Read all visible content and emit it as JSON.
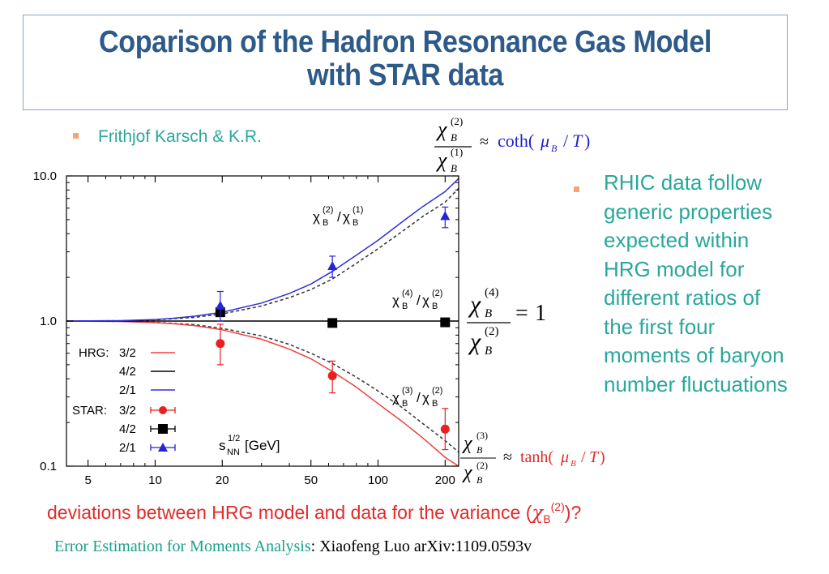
{
  "slide": {
    "title_line1": "Coparison of the Hadron Resonance Gas Model",
    "title_line2": "with  STAR data",
    "author": "Frithjof Karsch & K.R.",
    "right_bullet_lines": [
      "RHIC data follow",
      "generic properties",
      "expected within",
      "HRG model for",
      "different  ratios of",
      "the first four",
      "moments  of baryon",
      "number fluctuations"
    ],
    "bottom_question": "deviations between HRG model and data for the variance",
    "bottom_chi": "χ",
    "bottom_chi_sup": "(2)",
    "bottom_chi_sub": "B",
    "bottom_q_mark": "?",
    "citation_label": "Error Estimation for Moments Analysis",
    "citation_text": "Xiaofeng Luo  arXiv:1109.0593v",
    "colors": {
      "title": "#2e5a8a",
      "teal": "#2aa79b",
      "red": "#e32a2a",
      "blue": "#2b2bd6"
    }
  },
  "formulas": {
    "coth": {
      "num": "χ",
      "num_sub": "B",
      "num_sup": "(2)",
      "den": "χ",
      "den_sub": "B",
      "den_sup": "(1)",
      "approx": "≈",
      "fn": "coth(",
      "mu": "μ",
      "mu_sub": "B",
      "rest": "/",
      "T": "T",
      "close": ")"
    },
    "one": {
      "num": "χ",
      "num_sub": "B",
      "num_sup": "(4)",
      "den": "χ",
      "den_sub": "B",
      "den_sup": "(2)",
      "eq": "=",
      "val": "1"
    },
    "tanh": {
      "num": "χ",
      "num_sub": "B",
      "num_sup": "(3)",
      "den": "χ",
      "den_sub": "B",
      "den_sup": "(2)",
      "approx": "≈",
      "fn": "tanh(",
      "mu": "μ",
      "mu_sub": "B",
      "rest": "/",
      "T": "T",
      "close": ")"
    }
  },
  "chart_data": {
    "type": "line",
    "x_scale": "log",
    "y_scale": "log",
    "xlim": [
      4,
      230
    ],
    "ylim": [
      0.1,
      10
    ],
    "x_ticks": [
      5,
      10,
      20,
      50,
      100,
      200
    ],
    "x_tick_labels": [
      "5",
      "10",
      "20",
      "50",
      "100",
      "200"
    ],
    "y_ticks": [
      0.1,
      1.0,
      10.0
    ],
    "y_tick_labels": [
      "0.1",
      "1.0",
      "10.0"
    ],
    "xlabel_main": "s",
    "xlabel_sup": "1/2",
    "xlabel_sub": "NN",
    "xlabel_unit": "[GeV]",
    "curve_labels": [
      {
        "chi": "χ",
        "sub_a": "B",
        "sup_a": "(2)",
        "slash": "/",
        "sub_b": "B",
        "sup_b": "(1)"
      },
      {
        "chi": "χ",
        "sub_a": "B",
        "sup_a": "(4)",
        "slash": "/",
        "sub_b": "B",
        "sup_b": "(2)"
      },
      {
        "chi": "χ",
        "sub_a": "B",
        "sup_a": "(3)",
        "slash": "/",
        "sub_b": "B",
        "sup_b": "(2)"
      }
    ],
    "legend": {
      "position": "bottom-left",
      "hrg_label": "HRG:",
      "star_label": "STAR:",
      "entries": [
        "3/2",
        "4/2",
        "2/1"
      ]
    },
    "hrg_series": [
      {
        "name": "3/2",
        "color": "#f04040",
        "x": [
          4,
          5,
          7,
          10,
          12,
          15,
          20,
          30,
          40,
          50,
          62.4,
          80,
          100,
          130,
          160,
          200,
          230
        ],
        "y": [
          1,
          0.998,
          0.993,
          0.975,
          0.96,
          0.93,
          0.87,
          0.75,
          0.64,
          0.55,
          0.45,
          0.35,
          0.27,
          0.2,
          0.155,
          0.115,
          0.1
        ]
      },
      {
        "name": "4/2",
        "color": "#000000",
        "x": [
          4,
          230
        ],
        "y": [
          1,
          1
        ]
      },
      {
        "name": "2/1",
        "color": "#3030d8",
        "x": [
          4,
          5,
          7,
          10,
          12,
          15,
          20,
          30,
          40,
          50,
          62.4,
          80,
          100,
          130,
          160,
          200,
          230
        ],
        "y": [
          1,
          1.002,
          1.007,
          1.025,
          1.045,
          1.08,
          1.15,
          1.33,
          1.55,
          1.8,
          2.2,
          2.85,
          3.6,
          4.9,
          6.2,
          7.8,
          9.6
        ]
      }
    ],
    "dashed_series": [
      {
        "name": "2/1",
        "x": [
          4,
          7,
          10,
          15,
          20,
          30,
          40,
          50,
          62.4,
          80,
          100,
          130,
          160,
          200,
          230
        ],
        "y": [
          1,
          1.005,
          1.02,
          1.06,
          1.12,
          1.27,
          1.45,
          1.65,
          1.95,
          2.5,
          3.15,
          4.2,
          5.3,
          6.6,
          8.2
        ]
      },
      {
        "name": "3/2",
        "x": [
          4,
          7,
          10,
          15,
          20,
          30,
          40,
          50,
          62.4,
          80,
          100,
          130,
          160,
          200,
          230
        ],
        "y": [
          1,
          0.995,
          0.98,
          0.945,
          0.89,
          0.79,
          0.69,
          0.6,
          0.51,
          0.41,
          0.33,
          0.25,
          0.195,
          0.15,
          0.125
        ]
      }
    ],
    "star_series": [
      {
        "name": "3/2",
        "marker": "circle",
        "color": "#e82020",
        "x": [
          19.6,
          62.4,
          200
        ],
        "y": [
          0.7,
          0.42,
          0.18
        ],
        "y_low": [
          0.5,
          0.32,
          0.13
        ],
        "y_high": [
          0.95,
          0.53,
          0.25
        ]
      },
      {
        "name": "4/2",
        "marker": "square",
        "color": "#000000",
        "x": [
          19.6,
          62.4,
          200
        ],
        "y": [
          1.15,
          0.97,
          0.98
        ],
        "y_low": [
          1.15,
          0.97,
          0.98
        ],
        "y_high": [
          1.15,
          0.97,
          0.98
        ]
      },
      {
        "name": "2/1",
        "marker": "triangle",
        "color": "#2424d8",
        "x": [
          19.6,
          62.4,
          200
        ],
        "y": [
          1.28,
          2.4,
          5.3
        ],
        "y_low": [
          1.0,
          2.0,
          4.4
        ],
        "y_high": [
          1.6,
          2.8,
          6.1
        ]
      }
    ]
  }
}
